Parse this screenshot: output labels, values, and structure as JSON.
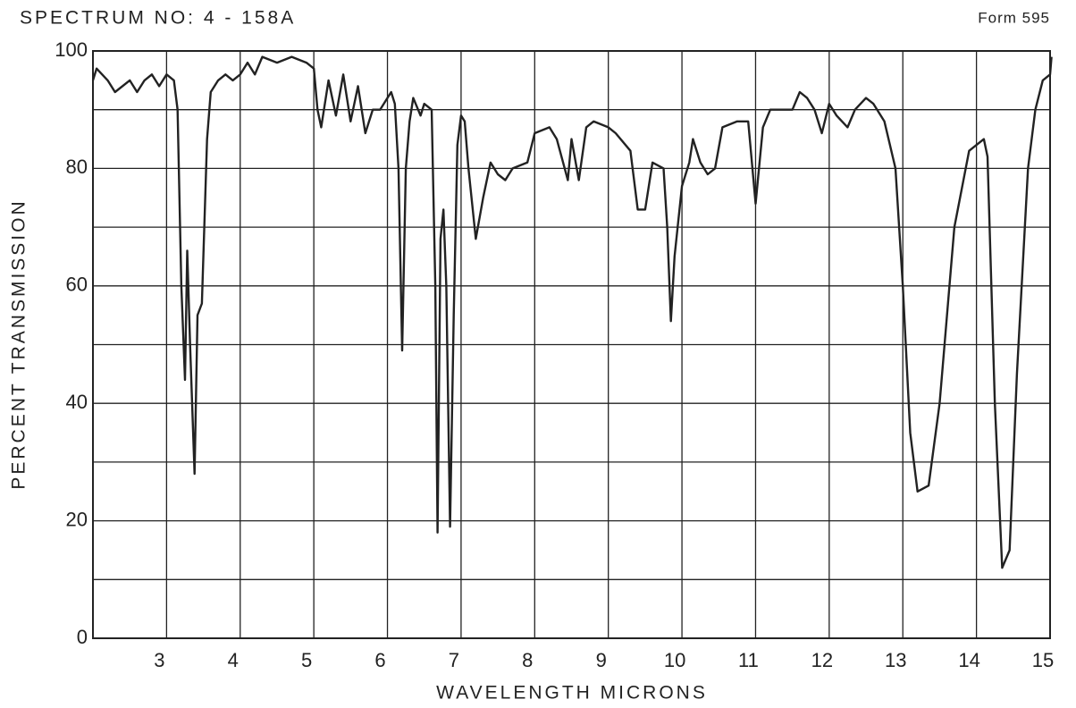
{
  "chart_data": {
    "type": "line",
    "title": "SPECTRUM NO: 4 - 158A",
    "form_label": "Form 595",
    "x_label": "WAVELENGTH MICRONS",
    "y_label": "PERCENT TRANSMISSION",
    "xlim": [
      2,
      15
    ],
    "xticks": [
      3,
      4,
      5,
      6,
      7,
      8,
      9,
      10,
      11,
      12,
      13,
      14,
      15
    ],
    "ylim": [
      0,
      100
    ],
    "yticks": [
      0,
      20,
      40,
      60,
      80,
      100
    ],
    "minor_yticks": [
      10,
      30,
      50,
      70,
      90
    ],
    "grid": true,
    "color": "#222222",
    "x": [
      2.0,
      2.05,
      2.2,
      2.3,
      2.5,
      2.6,
      2.7,
      2.8,
      2.9,
      3.0,
      3.1,
      3.15,
      3.2,
      3.25,
      3.28,
      3.32,
      3.38,
      3.42,
      3.48,
      3.55,
      3.6,
      3.7,
      3.8,
      3.9,
      4.0,
      4.1,
      4.2,
      4.3,
      4.5,
      4.7,
      4.9,
      5.0,
      5.05,
      5.1,
      5.2,
      5.3,
      5.4,
      5.5,
      5.6,
      5.7,
      5.8,
      5.9,
      6.0,
      6.05,
      6.1,
      6.15,
      6.2,
      6.25,
      6.3,
      6.35,
      6.45,
      6.5,
      6.6,
      6.65,
      6.68,
      6.72,
      6.76,
      6.8,
      6.85,
      6.9,
      6.95,
      7.0,
      7.05,
      7.1,
      7.2,
      7.3,
      7.4,
      7.5,
      7.6,
      7.7,
      7.9,
      8.0,
      8.2,
      8.3,
      8.45,
      8.5,
      8.6,
      8.7,
      8.8,
      9.0,
      9.1,
      9.3,
      9.4,
      9.5,
      9.6,
      9.75,
      9.8,
      9.85,
      9.9,
      10.0,
      10.1,
      10.15,
      10.25,
      10.35,
      10.45,
      10.55,
      10.75,
      10.9,
      11.0,
      11.1,
      11.2,
      11.5,
      11.6,
      11.7,
      11.8,
      11.9,
      12.0,
      12.1,
      12.25,
      12.35,
      12.5,
      12.6,
      12.75,
      12.9,
      13.0,
      13.1,
      13.2,
      13.35,
      13.5,
      13.7,
      13.9,
      14.1,
      14.15,
      14.25,
      14.35,
      14.45,
      14.55,
      14.7,
      14.8,
      14.9,
      15.0,
      15.02
    ],
    "values": [
      95,
      97,
      95,
      93,
      95,
      93,
      95,
      96,
      94,
      96,
      95,
      90,
      60,
      44,
      66,
      50,
      28,
      55,
      57,
      85,
      93,
      95,
      96,
      95,
      96,
      98,
      96,
      99,
      98,
      99,
      98,
      97,
      90,
      87,
      95,
      89,
      96,
      88,
      94,
      86,
      90,
      90,
      92,
      93,
      91,
      80,
      49,
      80,
      88,
      92,
      89,
      91,
      90,
      60,
      18,
      68,
      73,
      60,
      19,
      55,
      84,
      89,
      88,
      80,
      68,
      75,
      81,
      79,
      78,
      80,
      81,
      86,
      87,
      85,
      78,
      85,
      78,
      87,
      88,
      87,
      86,
      83,
      73,
      73,
      81,
      80,
      70,
      54,
      65,
      77,
      81,
      85,
      81,
      79,
      80,
      87,
      88,
      88,
      74,
      87,
      90,
      90,
      93,
      92,
      90,
      86,
      91,
      89,
      87,
      90,
      92,
      91,
      88,
      80,
      60,
      35,
      25,
      26,
      40,
      70,
      83,
      85,
      82,
      40,
      12,
      15,
      45,
      80,
      90,
      95,
      96,
      99
    ]
  }
}
